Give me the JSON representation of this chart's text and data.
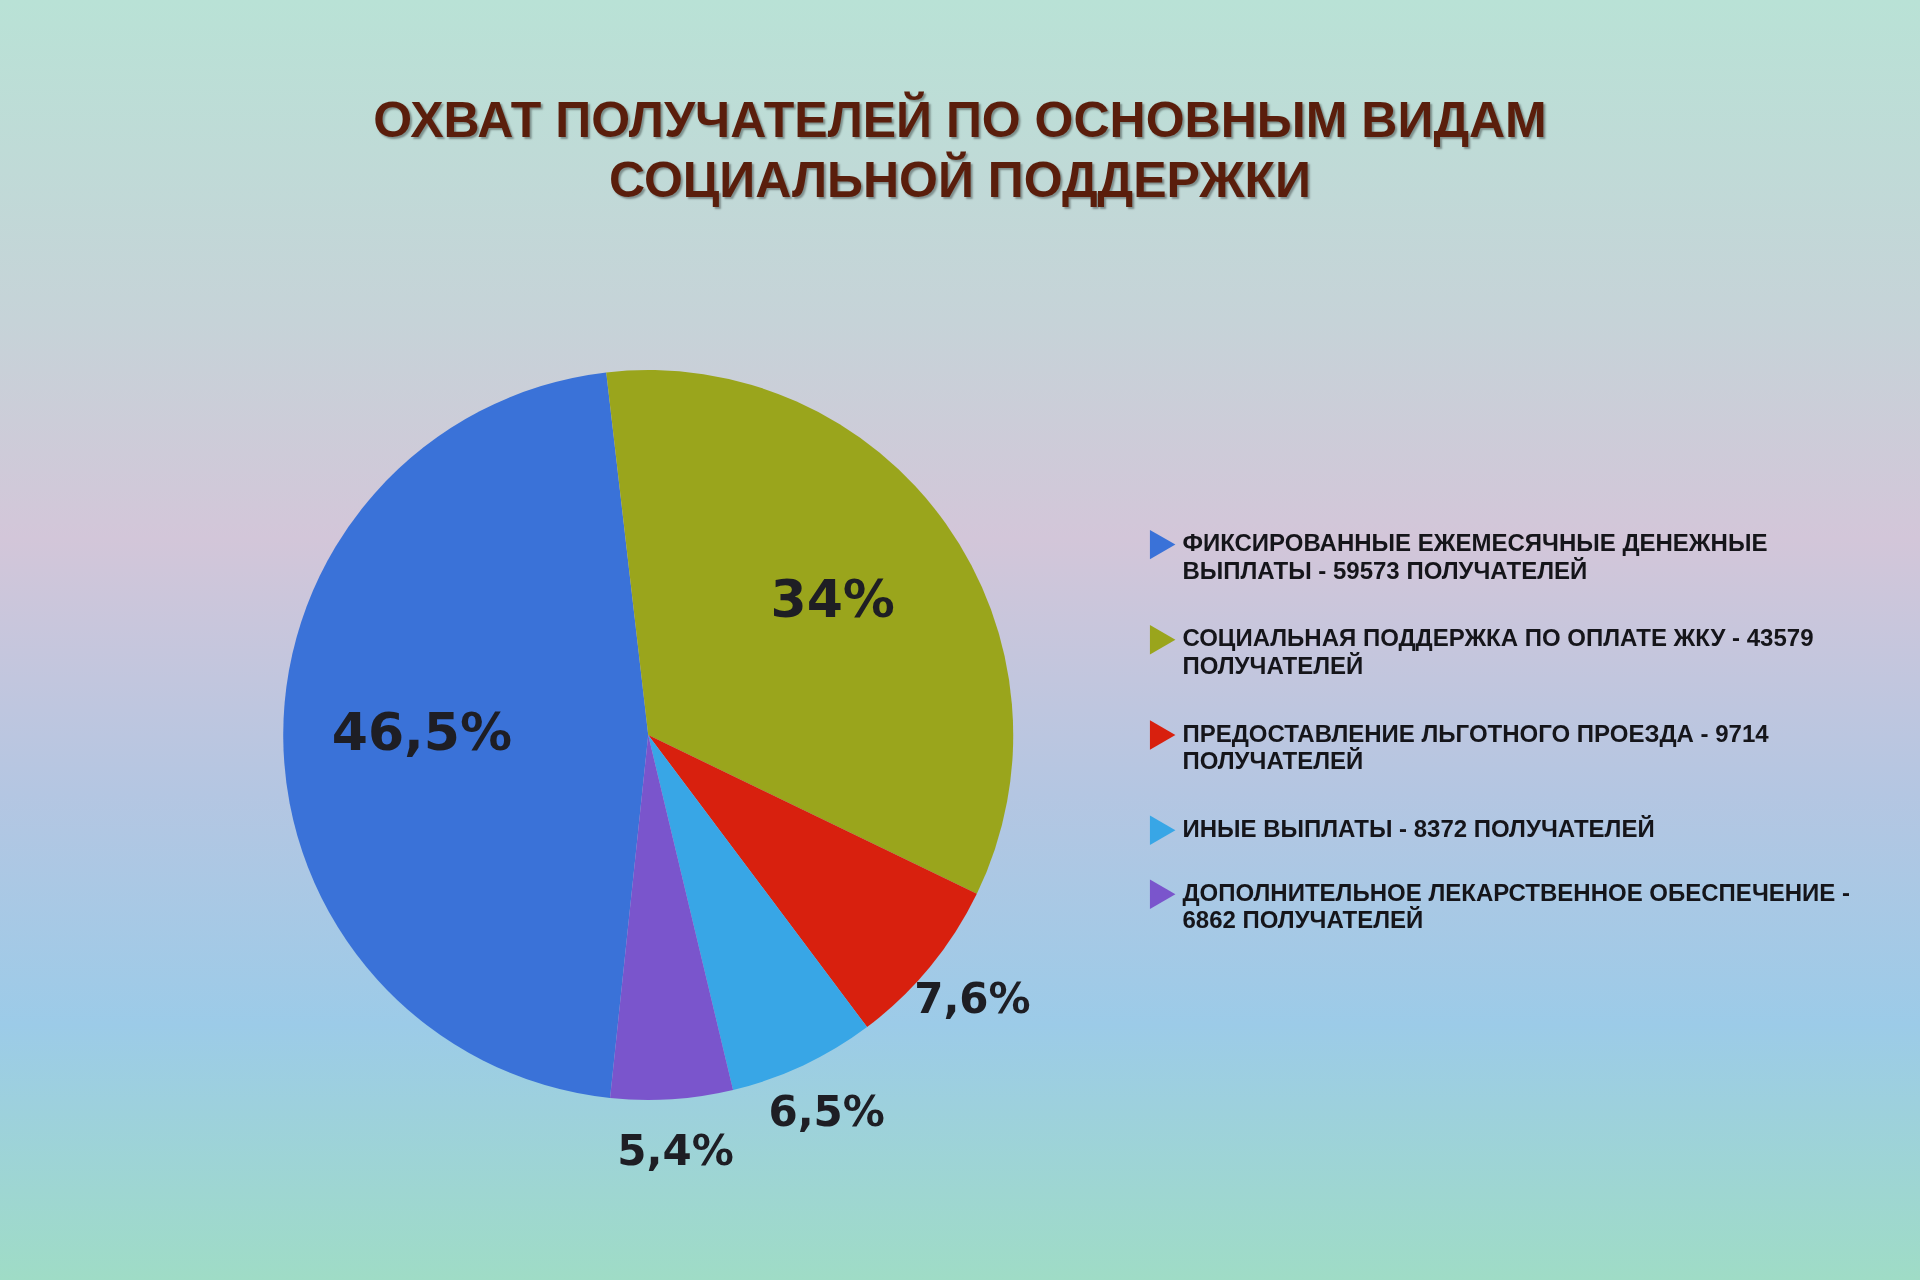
{
  "chart_data": {
    "type": "pie",
    "title": "ОХВАТ ПОЛУЧАТЕЛЕЙ ПО ОСНОВНЫМ ВИДАМ СОЦИАЛЬНОЙ ПОДДЕРЖКИ",
    "categories": [
      "ФИКСИРОВАННЫЕ ЕЖЕМЕСЯЧНЫЕ ДЕНЕЖНЫЕ ВЫПЛАТЫ - 59573 ПОЛУЧАТЕЛЕЙ",
      "СОЦИАЛЬНАЯ ПОДДЕРЖКА ПО ОПЛАТЕ ЖКУ - 43579 ПОЛУЧАТЕЛЕЙ",
      "ПРЕДОСТАВЛЕНИЕ ЛЬГОТНОГО ПРОЕЗДА - 9714 ПОЛУЧАТЕЛЕЙ",
      "ИНЫЕ ВЫПЛАТЫ - 8372 ПОЛУЧАТЕЛЕЙ",
      "ДОПОЛНИТЕЛЬНОЕ ЛЕКАРСТВЕННОЕ ОБЕСПЕЧЕНИЕ - 6862 ПОЛУЧАТЕЛЕЙ"
    ],
    "values": [
      46.5,
      34,
      7.6,
      6.5,
      5.4
    ],
    "colors": [
      "#3a72d8",
      "#9aa51c",
      "#d8200e",
      "#38a6e6",
      "#7a55cc"
    ],
    "value_labels": [
      "46,5%",
      "34%",
      "7,6%",
      "6,5%",
      "5,4%"
    ],
    "legend": "right"
  }
}
